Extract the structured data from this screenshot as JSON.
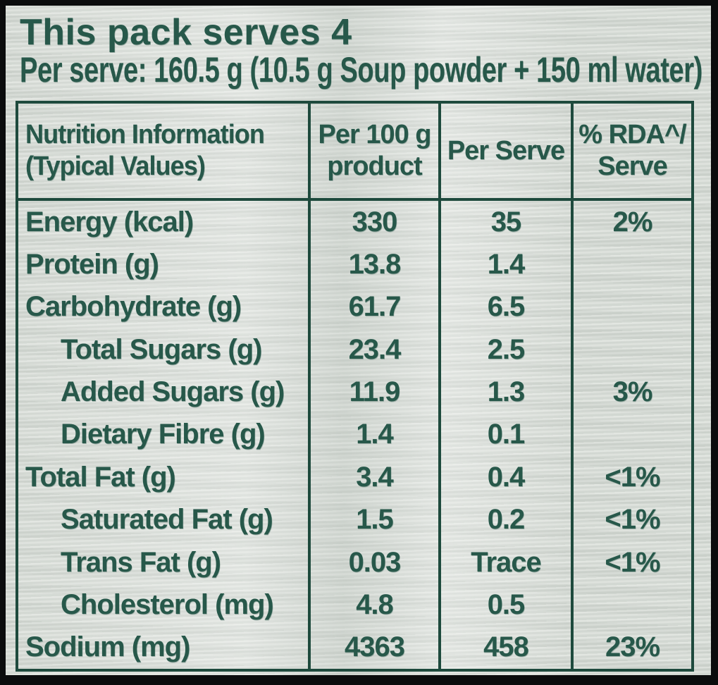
{
  "pack_info": {
    "serves_line": "This pack serves 4",
    "per_serve_line": "Per serve: 160.5 g (10.5 g Soup powder + 150 ml water)"
  },
  "table": {
    "headers": {
      "nutrition_info_line1": "Nutrition Information",
      "nutrition_info_line2": "(Typical Values)",
      "per_100g_line1": "Per 100 g",
      "per_100g_line2": "product",
      "per_serve": "Per Serve",
      "rda_line1": "% RDA^/",
      "rda_line2": "Serve"
    },
    "rows": [
      {
        "label": "Energy (kcal)",
        "per_100g": "330",
        "per_serve": "35",
        "rda_percent": "2%",
        "indent": false
      },
      {
        "label": "Protein (g)",
        "per_100g": "13.8",
        "per_serve": "1.4",
        "rda_percent": "",
        "indent": false
      },
      {
        "label": "Carbohydrate (g)",
        "per_100g": "61.7",
        "per_serve": "6.5",
        "rda_percent": "",
        "indent": false
      },
      {
        "label": "Total Sugars (g)",
        "per_100g": "23.4",
        "per_serve": "2.5",
        "rda_percent": "",
        "indent": true
      },
      {
        "label": "Added Sugars (g)",
        "per_100g": "11.9",
        "per_serve": "1.3",
        "rda_percent": "3%",
        "indent": true
      },
      {
        "label": "Dietary Fibre (g)",
        "per_100g": "1.4",
        "per_serve": "0.1",
        "rda_percent": "",
        "indent": true
      },
      {
        "label": "Total Fat (g)",
        "per_100g": "3.4",
        "per_serve": "0.4",
        "rda_percent": "<1%",
        "indent": false
      },
      {
        "label": "Saturated Fat (g)",
        "per_100g": "1.5",
        "per_serve": "0.2",
        "rda_percent": "<1%",
        "indent": true
      },
      {
        "label": "Trans Fat (g)",
        "per_100g": "0.03",
        "per_serve": "Trace",
        "rda_percent": "<1%",
        "indent": true
      },
      {
        "label": "Cholesterol (mg)",
        "per_100g": "4.8",
        "per_serve": "0.5",
        "rda_percent": "",
        "indent": true
      },
      {
        "label": "Sodium (mg)",
        "per_100g": "4363",
        "per_serve": "458",
        "rda_percent": "23%",
        "indent": false
      }
    ]
  },
  "colors": {
    "text_green": "#27584a",
    "table_border_green": "#1e4a3d",
    "foil_background": "#d6dbd5",
    "outer_frame": "#0b0c0d"
  }
}
